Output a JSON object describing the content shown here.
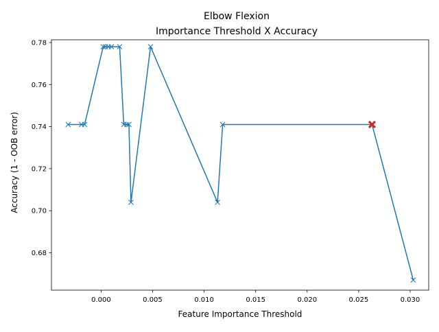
{
  "chart_data": {
    "type": "line",
    "title": "Elbow Flexion",
    "subtitle": "Importance Threshold X Accuracy",
    "xlabel": "Feature Importance Threshold",
    "ylabel": "Accuracy (1 - OOB error)",
    "xlim": [
      -0.00482,
      0.0318
    ],
    "ylim": [
      0.6622,
      0.7813
    ],
    "xticks": [
      {
        "value": 0.0,
        "label": "0.000"
      },
      {
        "value": 0.005,
        "label": "0.005"
      },
      {
        "value": 0.01,
        "label": "0.010"
      },
      {
        "value": 0.015,
        "label": "0.015"
      },
      {
        "value": 0.02,
        "label": "0.020"
      },
      {
        "value": 0.025,
        "label": "0.025"
      },
      {
        "value": 0.03,
        "label": "0.030"
      }
    ],
    "yticks": [
      {
        "value": 0.68,
        "label": "0.68"
      },
      {
        "value": 0.7,
        "label": "0.70"
      },
      {
        "value": 0.72,
        "label": "0.72"
      },
      {
        "value": 0.74,
        "label": "0.74"
      },
      {
        "value": 0.76,
        "label": "0.76"
      },
      {
        "value": 0.78,
        "label": "0.78"
      }
    ],
    "grid": false,
    "legend": "none",
    "series": [
      {
        "color": "#1f77b4",
        "marker": "x",
        "x": [
          -0.0032,
          -0.0019,
          -0.0016,
          0.0002,
          0.0004,
          0.0007,
          0.001,
          0.0018,
          0.0022,
          0.0025,
          0.0027,
          0.0029,
          0.0048,
          0.0113,
          0.0118,
          0.0263,
          0.0303
        ],
        "y": [
          0.741,
          0.741,
          0.741,
          0.778,
          0.778,
          0.778,
          0.778,
          0.778,
          0.741,
          0.741,
          0.741,
          0.704,
          0.778,
          0.704,
          0.741,
          0.741,
          0.667
        ]
      }
    ],
    "highlight": {
      "x": 0.0263,
      "y": 0.741,
      "color": "#d62728",
      "marker": "X"
    }
  }
}
